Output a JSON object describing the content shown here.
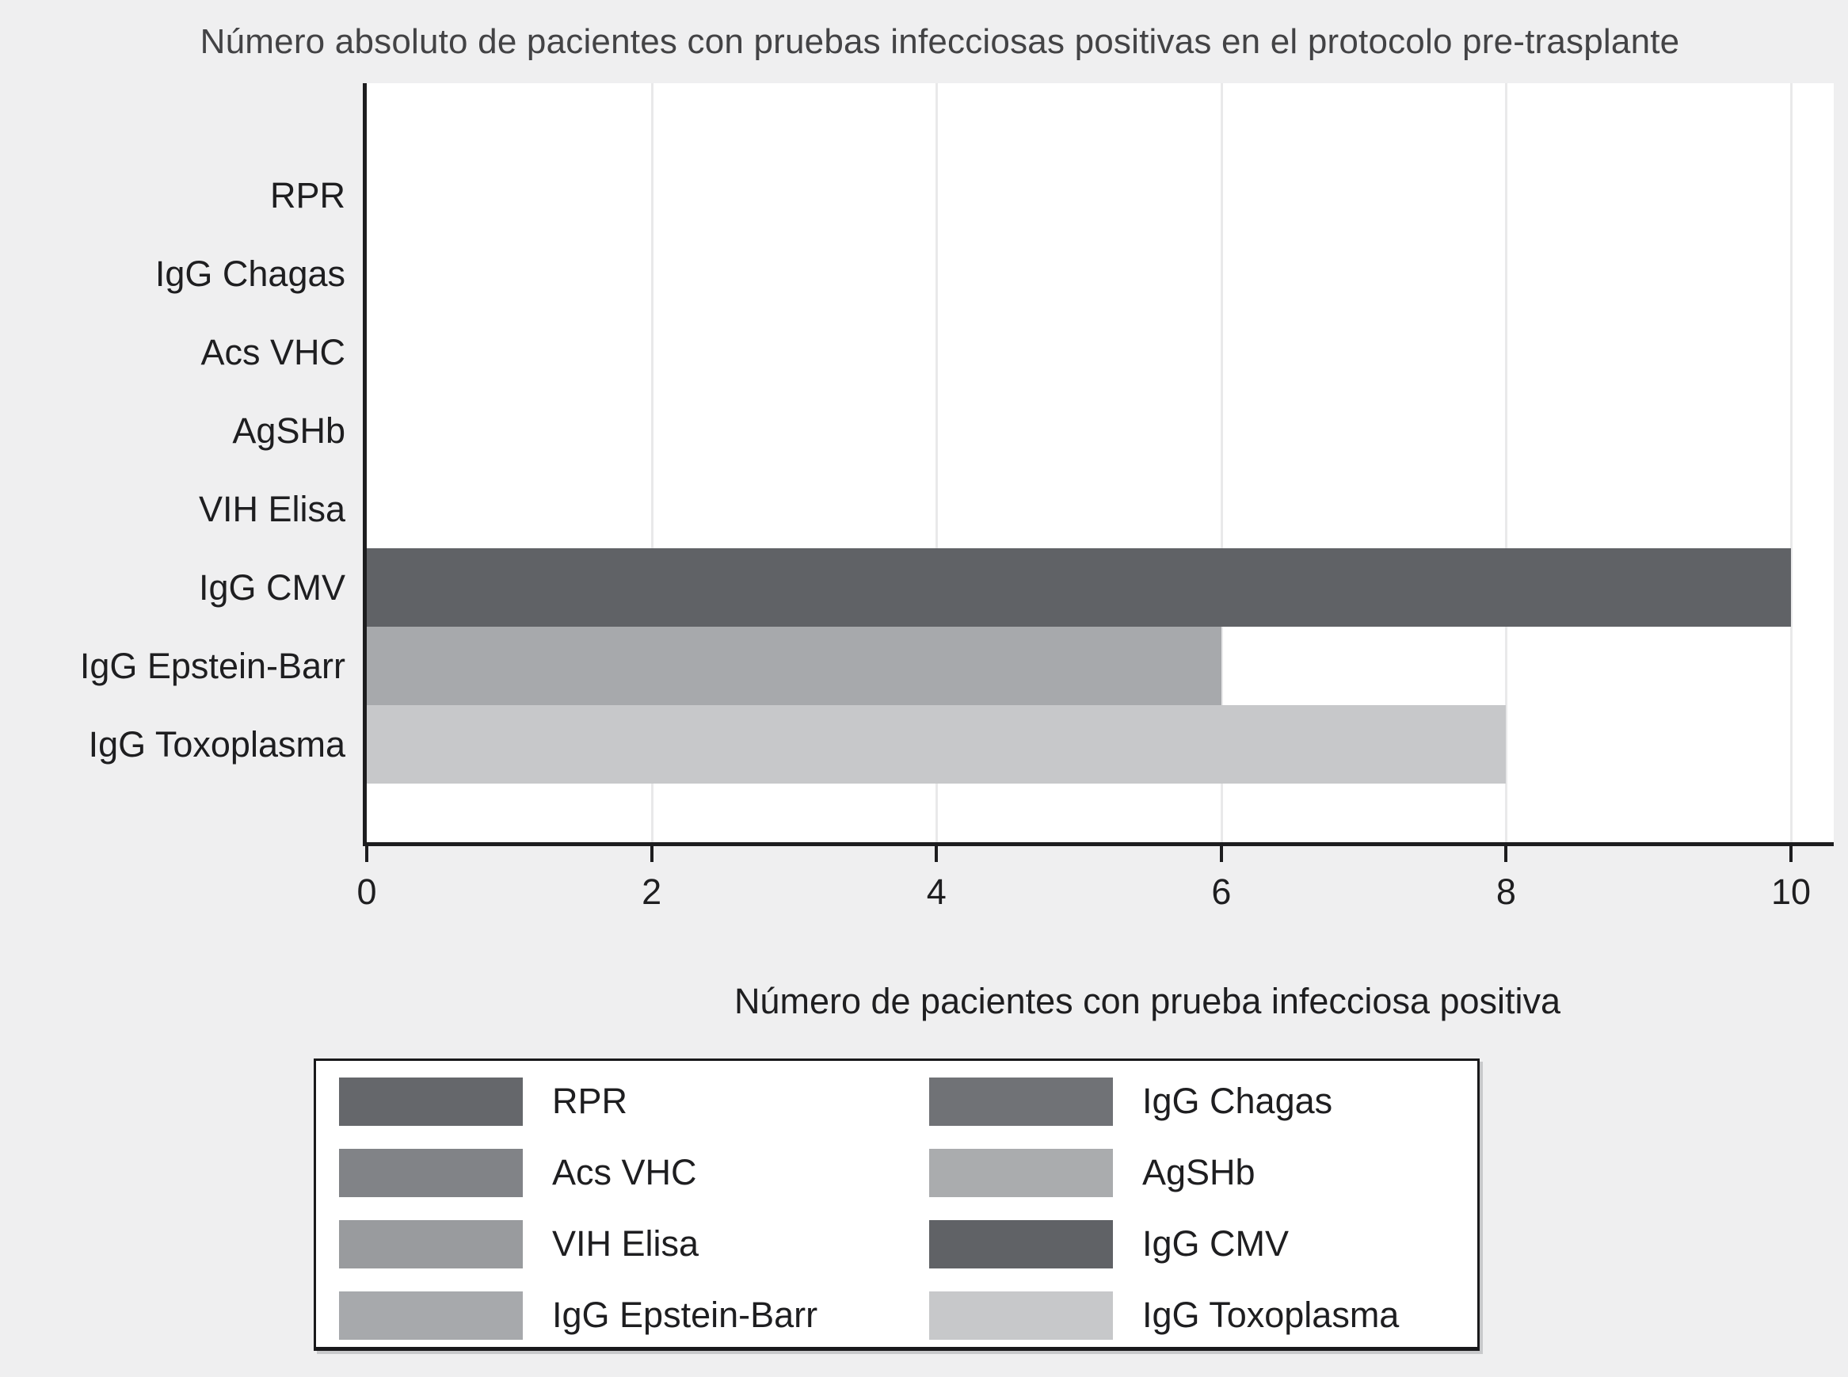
{
  "page": {
    "background_color": "#efeff0",
    "text_color": "#1e1e20",
    "title_color": "#434345"
  },
  "chart_data": {
    "type": "bar",
    "orientation": "horizontal",
    "title": "Número absoluto de pacientes con pruebas infecciosas positivas en el protocolo pre-trasplante",
    "xlabel": "Número de pacientes con prueba infecciosa positiva",
    "ylabel": "",
    "categories": [
      "RPR",
      "IgG Chagas",
      "Acs VHC",
      "AgSHb",
      "VIH Elisa",
      "IgG CMV",
      "IgG Epstein-Barr",
      "IgG Toxoplasma"
    ],
    "values": [
      0,
      0,
      0,
      0,
      0,
      10,
      6,
      8
    ],
    "bar_colors": [
      "#65676b",
      "#707276",
      "#818387",
      "#aaacae",
      "#999b9e",
      "#606266",
      "#a7a9ac",
      "#c7c8ca"
    ],
    "xlim": [
      0,
      10.3
    ],
    "xticks": [
      0,
      2,
      4,
      6,
      8,
      10
    ],
    "grid": true,
    "gridline_color": "#e9e9ea",
    "axis_color": "#1d1d1f",
    "plot_background": "#ffffff",
    "legend_position": "bottom"
  },
  "legend": {
    "items": [
      {
        "label": "RPR",
        "color": "#65676b"
      },
      {
        "label": "IgG Chagas",
        "color": "#707276"
      },
      {
        "label": "Acs VHC",
        "color": "#818387"
      },
      {
        "label": "AgSHb",
        "color": "#aaacae"
      },
      {
        "label": "VIH Elisa",
        "color": "#999b9e"
      },
      {
        "label": "IgG CMV",
        "color": "#606266"
      },
      {
        "label": "IgG Epstein-Barr",
        "color": "#a7a9ac"
      },
      {
        "label": "IgG Toxoplasma",
        "color": "#c7c8ca"
      }
    ]
  }
}
